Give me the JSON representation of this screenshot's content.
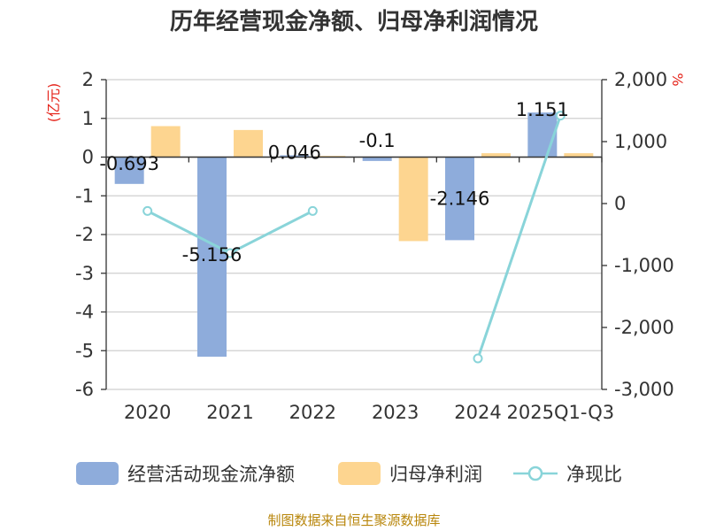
{
  "title": "历年经营现金净额、归母净利润情况",
  "source": "制图数据来自恒生聚源数据库",
  "colors": {
    "cash_flow": "#8eacdb",
    "net_profit": "#fdd590",
    "ratio": "#89d4d9",
    "left_unit": "#e5241b",
    "right_unit": "#e5241b",
    "source": "#b8860b"
  },
  "chart_data": {
    "type": "bar",
    "title": "历年经营现金净额、归母净利润情况",
    "categories": [
      "2020",
      "2021",
      "2022",
      "2023",
      "2024",
      "2025Q1-Q3"
    ],
    "series": [
      {
        "name": "经营活动现金流净额",
        "type": "bar",
        "axis": "left",
        "values": [
          -0.693,
          -5.156,
          0.046,
          -0.1,
          -2.146,
          1.151
        ]
      },
      {
        "name": "归母净利润",
        "type": "bar",
        "axis": "left",
        "values": [
          0.8,
          0.7,
          0.03,
          -2.17,
          0.1,
          0.1
        ]
      },
      {
        "name": "净现比",
        "type": "line",
        "axis": "right",
        "values": [
          -120,
          -800,
          -120,
          null,
          -2500,
          1420
        ]
      }
    ],
    "data_labels": [
      "-0.693",
      "-5.156",
      "0.046",
      "-0.1",
      "-2.146",
      "1.151"
    ],
    "left_axis": {
      "unit": "(亿元)",
      "ticks": [
        "2",
        "1",
        "0",
        "-1",
        "-2",
        "-3",
        "-4",
        "-5",
        "-6"
      ],
      "ylim": [
        -6,
        2
      ]
    },
    "right_axis": {
      "unit": "%",
      "ticks": [
        "2,000",
        "1,000",
        "0",
        "-1,000",
        "-2,000",
        "-3,000"
      ],
      "ylim": [
        -3000,
        2000
      ]
    },
    "grid": true,
    "legend_position": "bottom"
  }
}
